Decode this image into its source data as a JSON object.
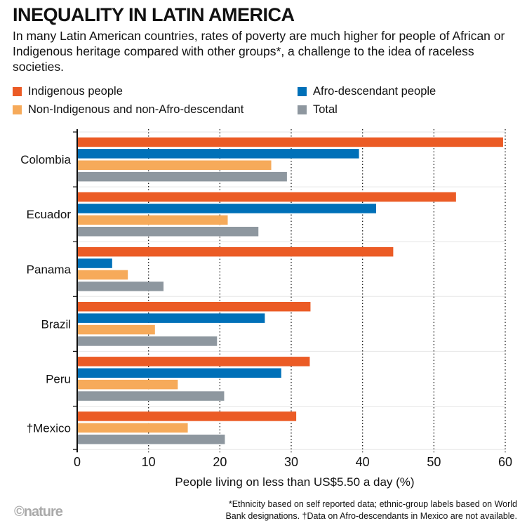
{
  "title": "INEQUALITY IN LATIN AMERICA",
  "subtitle": "In many Latin American countries, rates of poverty are much higher for people of African or Indigenous heritage compared with other groups*, a challenge to the idea of raceless societies.",
  "footnote_line1": "*Ethnicity based on self reported data; ethnic-group labels based on World",
  "footnote_line2": "Bank designations. †Data on Afro-descendants in Mexico are not available.",
  "logo": "©nature",
  "chart_data": {
    "type": "bar",
    "orientation": "horizontal",
    "categories": [
      "Colombia",
      "Ecuador",
      "Panama",
      "Brazil",
      "Peru",
      "†Mexico"
    ],
    "series": [
      {
        "name": "Indigenous people",
        "color": "#eb5b25",
        "values": [
          59.7,
          53.1,
          44.3,
          32.7,
          32.6,
          30.7
        ]
      },
      {
        "name": "Afro-descendant people",
        "color": "#0070b8",
        "values": [
          39.5,
          41.9,
          4.9,
          26.3,
          28.6,
          null
        ]
      },
      {
        "name": "Non-Indigenous and non-Afro-descendant",
        "color": "#f6aa5a",
        "values": [
          27.2,
          21.1,
          7.1,
          10.9,
          14.1,
          15.5
        ]
      },
      {
        "name": "Total",
        "color": "#8e979f",
        "values": [
          29.4,
          25.4,
          12.1,
          19.6,
          20.6,
          20.7
        ]
      }
    ],
    "xlabel": "People living on less than US$5.50 a day (%)",
    "xlim": [
      0,
      60
    ],
    "xticks": [
      0,
      10,
      20,
      30,
      40,
      50,
      60
    ],
    "grid": "vertical dotted",
    "legend": "top"
  }
}
